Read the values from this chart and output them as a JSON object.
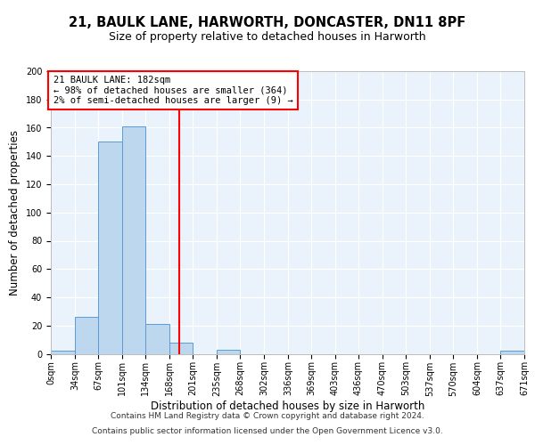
{
  "title": "21, BAULK LANE, HARWORTH, DONCASTER, DN11 8PF",
  "subtitle": "Size of property relative to detached houses in Harworth",
  "xlabel": "Distribution of detached houses by size in Harworth",
  "ylabel": "Number of detached properties",
  "bin_edges": [
    0,
    34,
    67,
    101,
    134,
    168,
    201,
    235,
    268,
    302,
    336,
    369,
    403,
    436,
    470,
    503,
    537,
    570,
    604,
    637,
    671
  ],
  "bin_counts": [
    2,
    26,
    150,
    161,
    21,
    8,
    0,
    3,
    0,
    0,
    0,
    0,
    0,
    0,
    0,
    0,
    0,
    0,
    0,
    2
  ],
  "bar_color": "#bdd7ee",
  "bar_edge_color": "#5b9bd5",
  "property_value": 182,
  "vline_color": "red",
  "annotation_title": "21 BAULK LANE: 182sqm",
  "annotation_line1": "← 98% of detached houses are smaller (364)",
  "annotation_line2": "2% of semi-detached houses are larger (9) →",
  "annotation_box_color": "red",
  "ylim": [
    0,
    200
  ],
  "yticks": [
    0,
    20,
    40,
    60,
    80,
    100,
    120,
    140,
    160,
    180,
    200
  ],
  "xtick_labels": [
    "0sqm",
    "34sqm",
    "67sqm",
    "101sqm",
    "134sqm",
    "168sqm",
    "201sqm",
    "235sqm",
    "268sqm",
    "302sqm",
    "336sqm",
    "369sqm",
    "403sqm",
    "436sqm",
    "470sqm",
    "503sqm",
    "537sqm",
    "570sqm",
    "604sqm",
    "637sqm",
    "671sqm"
  ],
  "footer1": "Contains HM Land Registry data © Crown copyright and database right 2024.",
  "footer2": "Contains public sector information licensed under the Open Government Licence v3.0.",
  "bg_color": "#eaf3fb",
  "fig_bg_color": "#ffffff",
  "title_fontsize": 10.5,
  "subtitle_fontsize": 9,
  "axis_label_fontsize": 8.5,
  "tick_fontsize": 7,
  "footer_fontsize": 6.5,
  "annotation_fontsize": 7.5
}
